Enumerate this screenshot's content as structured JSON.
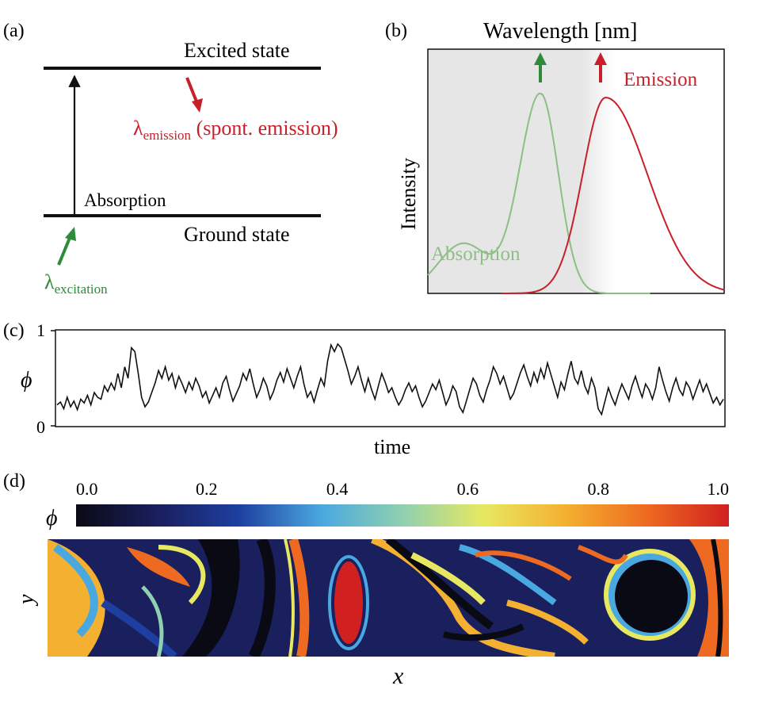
{
  "panel_a": {
    "label": "(a)",
    "excited_state": "Excited state",
    "ground_state": "Ground state",
    "absorption": "Absorption",
    "lambda": "λ",
    "emission_sub": "emission",
    "emission_note": " (spont. emission)",
    "excitation_sub": "excitation",
    "colors": {
      "emission": "#c8202a",
      "excitation": "#2e8b3a",
      "line": "#111111"
    }
  },
  "panel_b": {
    "label": "(b)",
    "title": "Wavelength [nm]",
    "ylabel": "Intensity",
    "absorption_label": "Absorption",
    "emission_label": "Emission",
    "colors": {
      "absorption": "#8cbf84",
      "emission": "#c8202a",
      "shade": "#e8e8e8",
      "up_green": "#2e8b3a"
    }
  },
  "panel_c": {
    "label": "(c)",
    "ylabel": "ϕ",
    "xlabel": "time",
    "ytick_top": "1",
    "ytick_bottom": "0"
  },
  "panel_d": {
    "label": "(d)",
    "colorbar_label": "ϕ",
    "ticks": [
      "0.0",
      "0.2",
      "0.4",
      "0.6",
      "0.8",
      "1.0"
    ],
    "xlabel": "x",
    "ylabel": "y",
    "colormap": [
      "#0a0a14",
      "#1a1f5e",
      "#1e3fa0",
      "#4aa8e0",
      "#8fd0b0",
      "#e8e860",
      "#f4b030",
      "#ee6a20",
      "#d02020"
    ]
  },
  "chart_data": [
    {
      "type": "line",
      "title": "Wavelength [nm]",
      "xlabel": "",
      "ylabel": "Intensity",
      "series": [
        {
          "name": "Absorption",
          "peak_x": 0.38,
          "peak_y": 1.0
        },
        {
          "name": "Emission",
          "peak_x": 0.6,
          "peak_y": 0.98
        }
      ]
    },
    {
      "type": "line",
      "xlabel": "time",
      "ylabel": "ϕ",
      "ylim": [
        0,
        1
      ],
      "series": [
        {
          "values": [
            0.22,
            0.25,
            0.18,
            0.3,
            0.2,
            0.26,
            0.17,
            0.28,
            0.24,
            0.32,
            0.22,
            0.35,
            0.3,
            0.28,
            0.42,
            0.36,
            0.45,
            0.38,
            0.55,
            0.4,
            0.62,
            0.5,
            0.82,
            0.78,
            0.55,
            0.3,
            0.2,
            0.25,
            0.35,
            0.45,
            0.58,
            0.5,
            0.62,
            0.48,
            0.55,
            0.4,
            0.52,
            0.44,
            0.35,
            0.46,
            0.38,
            0.5,
            0.42,
            0.3,
            0.36,
            0.24,
            0.32,
            0.4,
            0.3,
            0.45,
            0.52,
            0.38,
            0.26,
            0.34,
            0.42,
            0.55,
            0.48,
            0.6,
            0.44,
            0.3,
            0.38,
            0.5,
            0.42,
            0.28,
            0.36,
            0.48,
            0.56,
            0.46,
            0.6,
            0.5,
            0.4,
            0.52,
            0.62,
            0.44,
            0.3,
            0.36,
            0.25,
            0.38,
            0.5,
            0.42,
            0.68,
            0.85,
            0.78,
            0.86,
            0.82,
            0.7,
            0.58,
            0.44,
            0.52,
            0.62,
            0.48,
            0.36,
            0.5,
            0.38,
            0.28,
            0.42,
            0.55,
            0.46,
            0.35,
            0.4,
            0.3,
            0.22,
            0.28,
            0.38,
            0.45,
            0.36,
            0.42,
            0.3,
            0.2,
            0.26,
            0.35,
            0.44,
            0.38,
            0.48,
            0.35,
            0.22,
            0.3,
            0.42,
            0.36,
            0.2,
            0.14,
            0.26,
            0.38,
            0.5,
            0.44,
            0.32,
            0.25,
            0.38,
            0.48,
            0.62,
            0.55,
            0.44,
            0.52,
            0.4,
            0.28,
            0.34,
            0.45,
            0.56,
            0.64,
            0.52,
            0.42,
            0.56,
            0.46,
            0.6,
            0.5,
            0.66,
            0.54,
            0.42,
            0.3,
            0.46,
            0.38,
            0.54,
            0.68,
            0.5,
            0.44,
            0.58,
            0.42,
            0.34,
            0.5,
            0.4,
            0.18,
            0.12,
            0.26,
            0.4,
            0.3,
            0.22,
            0.34,
            0.44,
            0.36,
            0.28,
            0.42,
            0.52,
            0.4,
            0.3,
            0.44,
            0.38,
            0.28,
            0.4,
            0.62,
            0.48,
            0.36,
            0.26,
            0.4,
            0.5,
            0.38,
            0.32,
            0.46,
            0.4,
            0.28,
            0.38,
            0.48,
            0.36,
            0.44,
            0.34,
            0.24,
            0.3,
            0.22,
            0.28
          ]
        }
      ]
    }
  ]
}
